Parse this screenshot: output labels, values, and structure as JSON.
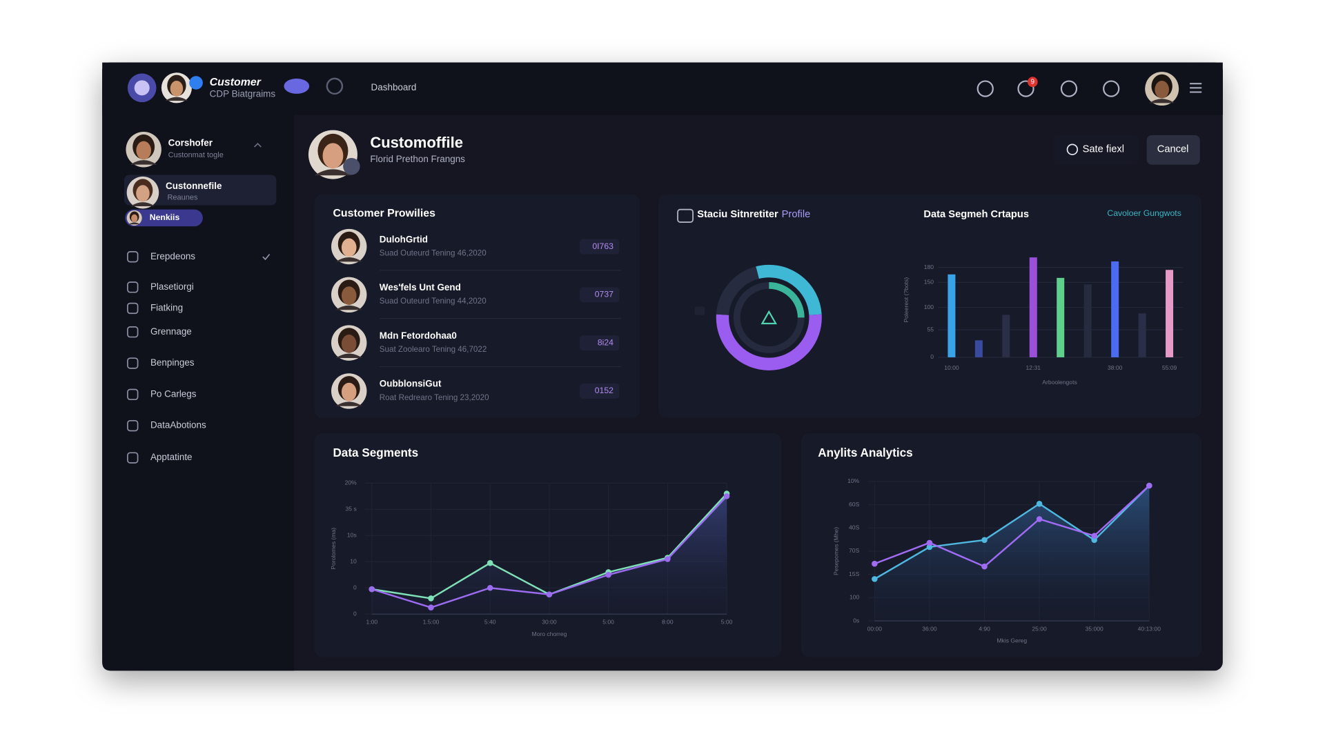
{
  "topbar": {
    "brand": "Customer",
    "brand_sub": "CDP Biatgraims",
    "nav": "Dashboard",
    "badge": "9"
  },
  "sidebar": {
    "user": {
      "name": "Corshofer",
      "sub": "Custonmat togle"
    },
    "active": {
      "name": "Custonnefile",
      "sub": "Reaunes"
    },
    "tag": "Nenkiis",
    "menu": [
      "Erepdeons",
      "Plasetiorgi",
      "Fiatking",
      "Grennage",
      "Benpinges",
      "Po Carlegs",
      "DataAbotions",
      "Apptatinte"
    ]
  },
  "header": {
    "title": "Customoffile",
    "subtitle": "Florid Prethon Frangns",
    "save": "Sate fiexl",
    "cancel": "Cancel"
  },
  "profiles": {
    "title": "Customer Prowilies",
    "rows": [
      {
        "name": "DulohGrtid",
        "detail": "Suad Outeurd Tening 46,2020",
        "score": "0I763"
      },
      {
        "name": "Wes'fels Unt Gend",
        "detail": "Suad Outeurd Tening 44,2020",
        "score": "0737"
      },
      {
        "name": "Mdn Fetordohaa0",
        "detail": "Suat Zoolearo Tening 46,7022",
        "score": "8i24"
      },
      {
        "name": "OubblonsiGut",
        "detail": "Roat Redrearo Tening 23,2020",
        "score": "0152"
      }
    ]
  },
  "donut": {
    "title": "Staciu Sitnretiter",
    "title_accent": "Profile",
    "segments": [
      {
        "color": "#3fb8d6",
        "value": 28
      },
      {
        "color": "#9b5cf0",
        "value": 52
      },
      {
        "color": "#262b40",
        "value": 20
      }
    ]
  },
  "bar_chart": {
    "title": "Data Segmeh Crtapus",
    "legend": "Cavoloer Gungwots",
    "y_label": "Poleereot (?bots)",
    "x_label": "Arboolengots",
    "categories": [
      "10:00",
      null,
      null,
      "12:31",
      null,
      null,
      "38:00",
      null,
      "55:09"
    ],
    "values": [
      166,
      34,
      85,
      200,
      159,
      146,
      192,
      88,
      175
    ],
    "colors": [
      "#3aa2e6",
      "#3a4a9c",
      "#2a2e46",
      "#9a50d8",
      "#5ed08c",
      "#272b40",
      "#4b6cf0",
      "#2a2e46",
      "#e79ac8"
    ],
    "ylim": [
      0,
      230
    ],
    "yticks": [
      0,
      55,
      100,
      150,
      180
    ]
  },
  "line_charts": [
    {
      "title": "Data Segments",
      "y_label": "Porolomes (ma)",
      "x_label": "Moro chorreg",
      "categories": [
        "1:00",
        "1.5:00",
        "5:40",
        "30:00",
        "5:00",
        "8:00",
        "5:00"
      ],
      "ytick_labels": [
        "20%",
        "35 s",
        "10s",
        "10",
        "0",
        "0"
      ],
      "ylim": [
        0,
        100
      ],
      "series": [
        {
          "color": "#7fe0b8",
          "values": [
            19,
            12,
            39,
            15,
            32,
            43,
            92
          ]
        },
        {
          "color": "#9b6cf0",
          "values": [
            19,
            5,
            20,
            15,
            30,
            42,
            90
          ]
        }
      ]
    },
    {
      "title": "Anylits Analytics",
      "y_label": "Pesepomes (Mhe)",
      "x_label": "Mkis Gereg",
      "categories": [
        "00:00",
        "36:00",
        "4:90",
        "25:00",
        "35:000",
        "40:13:00"
      ],
      "ytick_labels": [
        "10%",
        "60S",
        "40S",
        "70S",
        "15S",
        "100",
        "0s"
      ],
      "ylim": [
        0,
        100
      ],
      "series": [
        {
          "color": "#4fb8e0",
          "values": [
            30,
            53,
            58,
            84,
            58,
            97
          ]
        },
        {
          "color": "#a06cf4",
          "values": [
            41,
            56,
            39,
            73,
            61,
            97
          ]
        }
      ]
    }
  ]
}
